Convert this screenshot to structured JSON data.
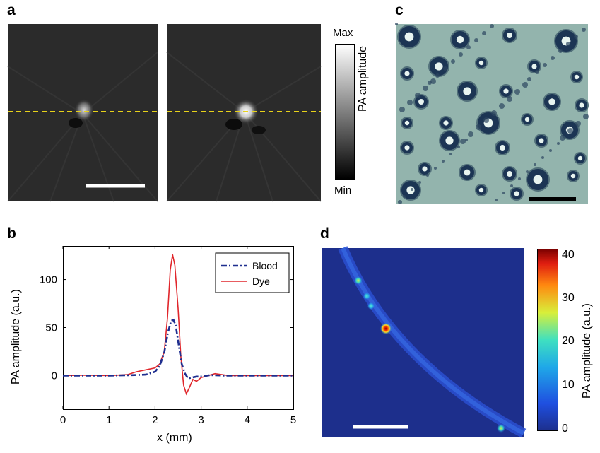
{
  "panels": {
    "a": {
      "label": "a",
      "colorbar": {
        "max_label": "Max",
        "min_label": "Min",
        "axis_label": "PA amplitude"
      }
    },
    "b": {
      "label": "b"
    },
    "c": {
      "label": "c"
    },
    "d": {
      "label": "d",
      "colorbar": {
        "ticks": [
          "40",
          "30",
          "20",
          "10",
          "0"
        ],
        "axis_label": "PA amplitude (a.u.)"
      }
    }
  },
  "chart_data": {
    "type": "line",
    "panel": "b",
    "title": "",
    "xlabel": "x (mm)",
    "ylabel": "PA amplitude (a.u.)",
    "xlim": [
      0,
      5
    ],
    "ylim": [
      -35,
      135
    ],
    "xticks": [
      "0",
      "1",
      "2",
      "3",
      "4",
      "5"
    ],
    "yticks": [
      "100",
      "50",
      "0"
    ],
    "ytick_values": [
      100,
      50,
      0
    ],
    "legend_position": "top-right",
    "series": [
      {
        "name": "Blood",
        "style": "dash-dot",
        "color": "#1f2f8f",
        "points": [
          [
            0,
            0
          ],
          [
            0.5,
            0
          ],
          [
            1,
            0
          ],
          [
            1.5,
            0.5
          ],
          [
            1.8,
            1
          ],
          [
            2.0,
            4
          ],
          [
            2.1,
            10
          ],
          [
            2.2,
            24
          ],
          [
            2.28,
            45
          ],
          [
            2.35,
            57
          ],
          [
            2.4,
            58
          ],
          [
            2.45,
            52
          ],
          [
            2.52,
            30
          ],
          [
            2.58,
            12
          ],
          [
            2.65,
            2
          ],
          [
            2.72,
            -3
          ],
          [
            2.8,
            -2
          ],
          [
            2.9,
            -1
          ],
          [
            3.0,
            -1
          ],
          [
            3.2,
            0.5
          ],
          [
            3.5,
            0
          ],
          [
            4,
            0
          ],
          [
            4.5,
            0
          ],
          [
            5,
            0
          ]
        ]
      },
      {
        "name": "Dye",
        "style": "solid",
        "color": "#e0262b",
        "points": [
          [
            0,
            0
          ],
          [
            0.5,
            0.5
          ],
          [
            1.0,
            0
          ],
          [
            1.4,
            1
          ],
          [
            1.6,
            4
          ],
          [
            1.8,
            6
          ],
          [
            2.0,
            8
          ],
          [
            2.1,
            12
          ],
          [
            2.2,
            25
          ],
          [
            2.27,
            60
          ],
          [
            2.33,
            110
          ],
          [
            2.38,
            126
          ],
          [
            2.43,
            115
          ],
          [
            2.5,
            70
          ],
          [
            2.56,
            20
          ],
          [
            2.62,
            -10
          ],
          [
            2.68,
            -19
          ],
          [
            2.75,
            -12
          ],
          [
            2.82,
            -4
          ],
          [
            2.9,
            -6
          ],
          [
            3.0,
            -2
          ],
          [
            3.3,
            2
          ],
          [
            3.6,
            0
          ],
          [
            4,
            0
          ],
          [
            4.5,
            0
          ],
          [
            5,
            0
          ]
        ]
      }
    ]
  },
  "colors": {
    "blood": "#1f2f8f",
    "dye": "#e0262b",
    "dashed_line": "#e8d21a",
    "scale_bar": "#ffffff",
    "scale_bar_c": "#000000"
  }
}
